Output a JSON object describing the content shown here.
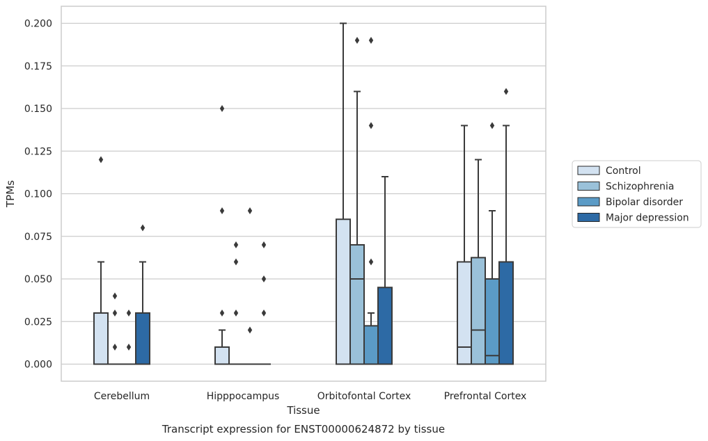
{
  "chart_data": {
    "type": "boxplot",
    "title": "",
    "caption": "Transcript expression for ENST00000624872 by tissue",
    "xlabel": "Tissue",
    "ylabel": "TPMs",
    "ylim": [
      -0.01,
      0.21
    ],
    "yticks": [
      "0.000",
      "0.025",
      "0.050",
      "0.075",
      "0.100",
      "0.125",
      "0.150",
      "0.175",
      "0.200"
    ],
    "grid": "horizontal",
    "legend_position": "right",
    "categories": [
      "Cerebellum",
      "Hipppocampus",
      "Orbitofontal Cortex",
      "Prefrontal Cortex"
    ],
    "series": [
      {
        "name": "Control",
        "color": "#d3e2f1",
        "boxes": [
          {
            "q1": 0.0,
            "median": 0.0,
            "q3": 0.03,
            "whisker_low": 0.0,
            "whisker_high": 0.06,
            "outliers": [
              0.12
            ]
          },
          {
            "q1": 0.0,
            "median": 0.0,
            "q3": 0.01,
            "whisker_low": 0.0,
            "whisker_high": 0.02,
            "outliers": [
              0.03,
              0.09,
              0.15
            ]
          },
          {
            "q1": 0.0,
            "median": 0.0,
            "q3": 0.085,
            "whisker_low": 0.0,
            "whisker_high": 0.2,
            "outliers": []
          },
          {
            "q1": 0.0,
            "median": 0.01,
            "q3": 0.06,
            "whisker_low": 0.0,
            "whisker_high": 0.14,
            "outliers": []
          }
        ]
      },
      {
        "name": "Schizophrenia",
        "color": "#9ac1d9",
        "boxes": [
          {
            "q1": 0.0,
            "median": 0.0,
            "q3": 0.0,
            "whisker_low": 0.0,
            "whisker_high": 0.0,
            "outliers": [
              0.01,
              0.03,
              0.04
            ]
          },
          {
            "q1": 0.0,
            "median": 0.0,
            "q3": 0.0,
            "whisker_low": 0.0,
            "whisker_high": 0.0,
            "outliers": [
              0.03,
              0.06,
              0.07
            ]
          },
          {
            "q1": 0.0,
            "median": 0.05,
            "q3": 0.07,
            "whisker_low": 0.0,
            "whisker_high": 0.16,
            "outliers": [
              0.19
            ]
          },
          {
            "q1": 0.0,
            "median": 0.02,
            "q3": 0.0625,
            "whisker_low": 0.0,
            "whisker_high": 0.12,
            "outliers": []
          }
        ]
      },
      {
        "name": "Bipolar disorder",
        "color": "#5b9bc6",
        "boxes": [
          {
            "q1": 0.0,
            "median": 0.0,
            "q3": 0.0,
            "whisker_low": 0.0,
            "whisker_high": 0.0,
            "outliers": [
              0.01,
              0.03
            ]
          },
          {
            "q1": 0.0,
            "median": 0.0,
            "q3": 0.0,
            "whisker_low": 0.0,
            "whisker_high": 0.0,
            "outliers": [
              0.02,
              0.09
            ]
          },
          {
            "q1": 0.0,
            "median": 0.0,
            "q3": 0.0225,
            "whisker_low": 0.0,
            "whisker_high": 0.03,
            "outliers": [
              0.06,
              0.14,
              0.19
            ]
          },
          {
            "q1": 0.0,
            "median": 0.005,
            "q3": 0.05,
            "whisker_low": 0.0,
            "whisker_high": 0.09,
            "outliers": [
              0.14
            ]
          }
        ]
      },
      {
        "name": "Major depression",
        "color": "#2d6aa5",
        "boxes": [
          {
            "q1": 0.0,
            "median": 0.0,
            "q3": 0.03,
            "whisker_low": 0.0,
            "whisker_high": 0.06,
            "outliers": [
              0.08
            ]
          },
          {
            "q1": 0.0,
            "median": 0.0,
            "q3": 0.0,
            "whisker_low": 0.0,
            "whisker_high": 0.0,
            "outliers": [
              0.03,
              0.05,
              0.07
            ]
          },
          {
            "q1": 0.0,
            "median": 0.0,
            "q3": 0.045,
            "whisker_low": 0.0,
            "whisker_high": 0.11,
            "outliers": []
          },
          {
            "q1": 0.0,
            "median": 0.0,
            "q3": 0.06,
            "whisker_low": 0.0,
            "whisker_high": 0.14,
            "outliers": [
              0.16
            ]
          }
        ]
      }
    ]
  }
}
